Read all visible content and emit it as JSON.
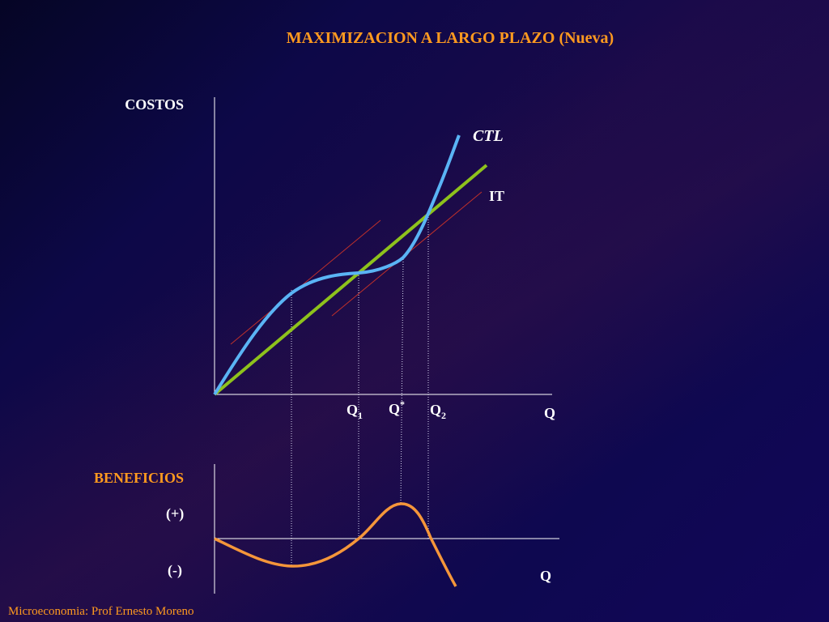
{
  "slide": {
    "title": "MAXIMIZACION A LARGO PLAZO (Nueva)",
    "footer": "Microeconomia: Prof Ernesto Moreno"
  },
  "top_chart": {
    "y_axis_label": "COSTOS",
    "x_axis_label": "Q",
    "ctl_label": "CTL",
    "it_label": "IT",
    "q1_label": "Q",
    "q1_sub": "1",
    "qstar_label": "Q",
    "qstar_sup": "*",
    "q2_label": "Q",
    "q2_sub": "2"
  },
  "bottom_chart": {
    "y_axis_label": "BENEFICIOS",
    "plus_label": "(+)",
    "minus_label": "(-)",
    "x_axis_label": "Q"
  },
  "colors": {
    "title": "#ff9a1f",
    "ctl_curve": "#5ab4f5",
    "it_line": "#8ec21c",
    "tangent_lines": "#c0302a",
    "profit_curve": "#f5963a",
    "axes": "#ffffff"
  }
}
